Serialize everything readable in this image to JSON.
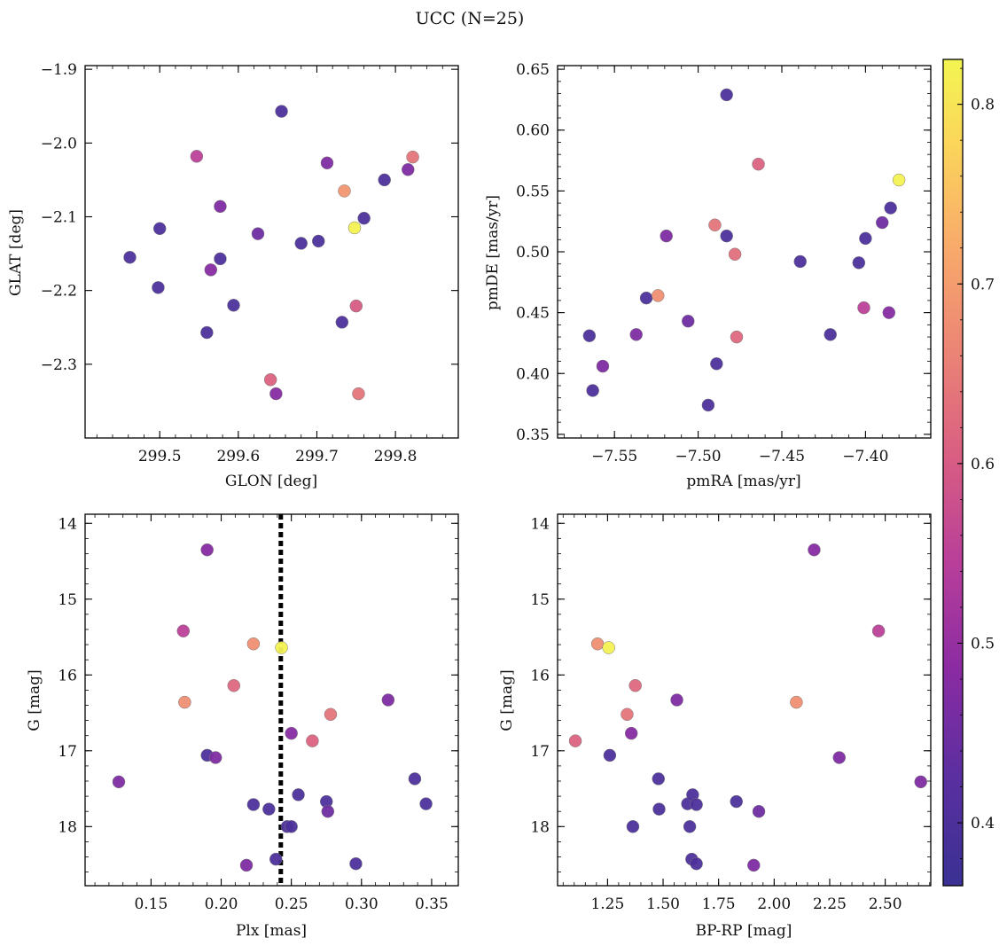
{
  "title": "UCC (N=25)",
  "colorbar": {
    "ticks": [
      "0.4",
      "0.5",
      "0.6",
      "0.7",
      "0.8"
    ],
    "tick_values": [
      0.4,
      0.5,
      0.6,
      0.7,
      0.8
    ],
    "range": [
      0.365,
      0.825
    ],
    "colormap": "plasma"
  },
  "chart_data": [
    {
      "type": "scatter",
      "id": "glon_glat",
      "xlabel": "GLON [deg]",
      "ylabel": "GLAT [deg]",
      "xlim": [
        299.405,
        299.88
      ],
      "ylim": [
        -2.4,
        -1.895
      ],
      "xticks": [
        "299.5",
        "299.6",
        "299.7",
        "299.8"
      ],
      "xtick_values": [
        299.5,
        299.6,
        299.7,
        299.8
      ],
      "yticks": [
        "−1.9",
        "−2.0",
        "−2.1",
        "−2.2",
        "−2.3"
      ],
      "ytick_values": [
        -1.9,
        -2.0,
        -2.1,
        -2.2,
        -2.3
      ],
      "invert_y": false,
      "x": [
        299.462,
        299.498,
        299.5,
        299.547,
        299.56,
        299.565,
        299.577,
        299.577,
        299.594,
        299.625,
        299.641,
        299.648,
        299.655,
        299.68,
        299.702,
        299.713,
        299.732,
        299.735,
        299.748,
        299.75,
        299.753,
        299.76,
        299.786,
        299.816,
        299.822
      ],
      "y": [
        -2.155,
        -2.196,
        -2.116,
        -2.018,
        -2.257,
        -2.172,
        -2.086,
        -2.157,
        -2.22,
        -2.123,
        -2.321,
        -2.34,
        -1.957,
        -2.136,
        -2.133,
        -2.027,
        -2.243,
        -2.065,
        -2.115,
        -2.221,
        -2.34,
        -2.102,
        -2.05,
        -2.036,
        -2.019
      ],
      "c": [
        0.4,
        0.4,
        0.4,
        0.55,
        0.4,
        0.48,
        0.47,
        0.4,
        0.4,
        0.45,
        0.61,
        0.48,
        0.4,
        0.4,
        0.4,
        0.47,
        0.4,
        0.69,
        0.82,
        0.6,
        0.64,
        0.4,
        0.4,
        0.47,
        0.64
      ]
    },
    {
      "type": "scatter",
      "id": "pmra_pmde",
      "xlabel": "pmRA [mas/yr]",
      "ylabel": "pmDE [mas/yr]",
      "xlim": [
        -7.584,
        -7.361
      ],
      "ylim": [
        0.347,
        0.653
      ],
      "xticks": [
        "−7.55",
        "−7.50",
        "−7.45",
        "−7.40"
      ],
      "xtick_values": [
        -7.55,
        -7.5,
        -7.45,
        -7.4
      ],
      "yticks": [
        "0.35",
        "0.40",
        "0.45",
        "0.50",
        "0.55",
        "0.60",
        "0.65"
      ],
      "ytick_values": [
        0.35,
        0.4,
        0.45,
        0.5,
        0.55,
        0.6,
        0.65
      ],
      "invert_y": false,
      "x": [
        -7.565,
        -7.563,
        -7.557,
        -7.537,
        -7.531,
        -7.524,
        -7.519,
        -7.506,
        -7.494,
        -7.49,
        -7.489,
        -7.483,
        -7.483,
        -7.478,
        -7.477,
        -7.464,
        -7.439,
        -7.421,
        -7.404,
        -7.401,
        -7.4,
        -7.39,
        -7.386,
        -7.385,
        -7.38
      ],
      "y": [
        0.431,
        0.386,
        0.406,
        0.432,
        0.462,
        0.464,
        0.513,
        0.443,
        0.374,
        0.522,
        0.408,
        0.513,
        0.629,
        0.498,
        0.43,
        0.572,
        0.492,
        0.432,
        0.491,
        0.454,
        0.511,
        0.524,
        0.45,
        0.536,
        0.559
      ],
      "c": [
        0.4,
        0.4,
        0.47,
        0.47,
        0.4,
        0.68,
        0.47,
        0.45,
        0.4,
        0.64,
        0.4,
        0.4,
        0.4,
        0.63,
        0.62,
        0.61,
        0.4,
        0.4,
        0.4,
        0.55,
        0.4,
        0.45,
        0.48,
        0.4,
        0.82
      ]
    },
    {
      "type": "scatter",
      "id": "plx_g",
      "xlabel": "Plx [mas]",
      "ylabel": "G [mag]",
      "xlim": [
        0.103,
        0.369
      ],
      "ylim": [
        13.88,
        18.78
      ],
      "xticks": [
        "0.15",
        "0.20",
        "0.25",
        "0.30",
        "0.35"
      ],
      "xtick_values": [
        0.15,
        0.2,
        0.25,
        0.3,
        0.35
      ],
      "yticks": [
        "14",
        "15",
        "16",
        "17",
        "18"
      ],
      "ytick_values": [
        14,
        15,
        16,
        17,
        18
      ],
      "invert_y": true,
      "vline": 0.2425,
      "x": [
        0.127,
        0.173,
        0.174,
        0.19,
        0.19,
        0.196,
        0.209,
        0.218,
        0.223,
        0.223,
        0.234,
        0.239,
        0.243,
        0.247,
        0.25,
        0.25,
        0.255,
        0.265,
        0.275,
        0.276,
        0.278,
        0.296,
        0.319,
        0.338,
        0.346
      ],
      "y": [
        17.41,
        15.42,
        16.36,
        14.35,
        17.06,
        17.09,
        16.14,
        18.51,
        17.71,
        15.59,
        17.77,
        18.43,
        15.64,
        18.0,
        18.0,
        16.77,
        17.58,
        16.87,
        17.67,
        17.8,
        16.52,
        18.49,
        16.33,
        17.37,
        17.7
      ],
      "c": [
        0.47,
        0.55,
        0.68,
        0.48,
        0.4,
        0.47,
        0.62,
        0.47,
        0.4,
        0.68,
        0.4,
        0.4,
        0.82,
        0.4,
        0.4,
        0.48,
        0.4,
        0.61,
        0.4,
        0.45,
        0.64,
        0.4,
        0.47,
        0.4,
        0.4
      ]
    },
    {
      "type": "scatter",
      "id": "bprp_g",
      "xlabel": "BP-RP [mag]",
      "ylabel": "G [mag]",
      "xlim": [
        1.025,
        2.705
      ],
      "ylim": [
        13.88,
        18.78
      ],
      "xticks": [
        "1.25",
        "1.50",
        "1.75",
        "2.00",
        "2.25",
        "2.50"
      ],
      "xtick_values": [
        1.25,
        1.5,
        1.75,
        2.0,
        2.25,
        2.5
      ],
      "yticks": [
        "14",
        "15",
        "16",
        "17",
        "18"
      ],
      "ytick_values": [
        14,
        15,
        16,
        17,
        18
      ],
      "invert_y": true,
      "x": [
        1.105,
        1.205,
        1.255,
        1.26,
        1.338,
        1.357,
        1.364,
        1.375,
        1.479,
        1.482,
        1.562,
        1.61,
        1.62,
        1.629,
        1.633,
        1.65,
        1.65,
        1.83,
        1.908,
        1.931,
        2.1,
        2.18,
        2.293,
        2.47,
        2.66
      ],
      "y": [
        16.87,
        15.59,
        15.64,
        17.06,
        16.52,
        16.77,
        18.0,
        16.14,
        17.37,
        17.77,
        16.33,
        17.7,
        18.0,
        18.43,
        17.58,
        17.71,
        18.49,
        17.67,
        18.51,
        17.8,
        16.36,
        14.35,
        17.09,
        15.42,
        17.41
      ],
      "c": [
        0.61,
        0.68,
        0.82,
        0.4,
        0.64,
        0.48,
        0.4,
        0.62,
        0.4,
        0.4,
        0.47,
        0.4,
        0.4,
        0.4,
        0.4,
        0.4,
        0.4,
        0.4,
        0.47,
        0.45,
        0.68,
        0.48,
        0.47,
        0.55,
        0.47
      ]
    }
  ]
}
